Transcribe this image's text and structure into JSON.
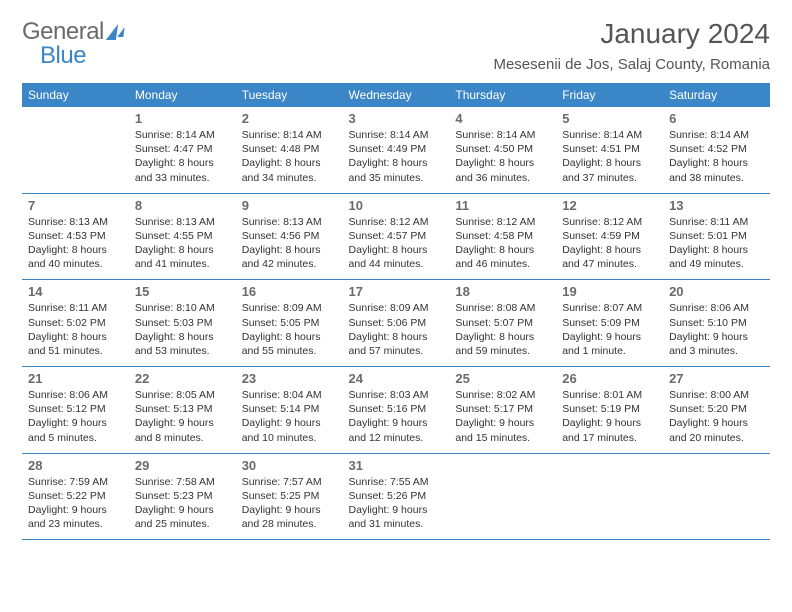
{
  "brand": {
    "word1": "General",
    "word2": "Blue"
  },
  "title": "January 2024",
  "location": "Mesesenii de Jos, Salaj County, Romania",
  "colors": {
    "header_bg": "#3b86c6",
    "header_fg": "#ffffff",
    "rule": "#3b86c6",
    "text": "#333333",
    "muted": "#6a6a6a"
  },
  "weekdays": [
    "Sunday",
    "Monday",
    "Tuesday",
    "Wednesday",
    "Thursday",
    "Friday",
    "Saturday"
  ],
  "weeks": [
    [
      null,
      {
        "n": "1",
        "sr": "Sunrise: 8:14 AM",
        "ss": "Sunset: 4:47 PM",
        "dl1": "Daylight: 8 hours",
        "dl2": "and 33 minutes."
      },
      {
        "n": "2",
        "sr": "Sunrise: 8:14 AM",
        "ss": "Sunset: 4:48 PM",
        "dl1": "Daylight: 8 hours",
        "dl2": "and 34 minutes."
      },
      {
        "n": "3",
        "sr": "Sunrise: 8:14 AM",
        "ss": "Sunset: 4:49 PM",
        "dl1": "Daylight: 8 hours",
        "dl2": "and 35 minutes."
      },
      {
        "n": "4",
        "sr": "Sunrise: 8:14 AM",
        "ss": "Sunset: 4:50 PM",
        "dl1": "Daylight: 8 hours",
        "dl2": "and 36 minutes."
      },
      {
        "n": "5",
        "sr": "Sunrise: 8:14 AM",
        "ss": "Sunset: 4:51 PM",
        "dl1": "Daylight: 8 hours",
        "dl2": "and 37 minutes."
      },
      {
        "n": "6",
        "sr": "Sunrise: 8:14 AM",
        "ss": "Sunset: 4:52 PM",
        "dl1": "Daylight: 8 hours",
        "dl2": "and 38 minutes."
      }
    ],
    [
      {
        "n": "7",
        "sr": "Sunrise: 8:13 AM",
        "ss": "Sunset: 4:53 PM",
        "dl1": "Daylight: 8 hours",
        "dl2": "and 40 minutes."
      },
      {
        "n": "8",
        "sr": "Sunrise: 8:13 AM",
        "ss": "Sunset: 4:55 PM",
        "dl1": "Daylight: 8 hours",
        "dl2": "and 41 minutes."
      },
      {
        "n": "9",
        "sr": "Sunrise: 8:13 AM",
        "ss": "Sunset: 4:56 PM",
        "dl1": "Daylight: 8 hours",
        "dl2": "and 42 minutes."
      },
      {
        "n": "10",
        "sr": "Sunrise: 8:12 AM",
        "ss": "Sunset: 4:57 PM",
        "dl1": "Daylight: 8 hours",
        "dl2": "and 44 minutes."
      },
      {
        "n": "11",
        "sr": "Sunrise: 8:12 AM",
        "ss": "Sunset: 4:58 PM",
        "dl1": "Daylight: 8 hours",
        "dl2": "and 46 minutes."
      },
      {
        "n": "12",
        "sr": "Sunrise: 8:12 AM",
        "ss": "Sunset: 4:59 PM",
        "dl1": "Daylight: 8 hours",
        "dl2": "and 47 minutes."
      },
      {
        "n": "13",
        "sr": "Sunrise: 8:11 AM",
        "ss": "Sunset: 5:01 PM",
        "dl1": "Daylight: 8 hours",
        "dl2": "and 49 minutes."
      }
    ],
    [
      {
        "n": "14",
        "sr": "Sunrise: 8:11 AM",
        "ss": "Sunset: 5:02 PM",
        "dl1": "Daylight: 8 hours",
        "dl2": "and 51 minutes."
      },
      {
        "n": "15",
        "sr": "Sunrise: 8:10 AM",
        "ss": "Sunset: 5:03 PM",
        "dl1": "Daylight: 8 hours",
        "dl2": "and 53 minutes."
      },
      {
        "n": "16",
        "sr": "Sunrise: 8:09 AM",
        "ss": "Sunset: 5:05 PM",
        "dl1": "Daylight: 8 hours",
        "dl2": "and 55 minutes."
      },
      {
        "n": "17",
        "sr": "Sunrise: 8:09 AM",
        "ss": "Sunset: 5:06 PM",
        "dl1": "Daylight: 8 hours",
        "dl2": "and 57 minutes."
      },
      {
        "n": "18",
        "sr": "Sunrise: 8:08 AM",
        "ss": "Sunset: 5:07 PM",
        "dl1": "Daylight: 8 hours",
        "dl2": "and 59 minutes."
      },
      {
        "n": "19",
        "sr": "Sunrise: 8:07 AM",
        "ss": "Sunset: 5:09 PM",
        "dl1": "Daylight: 9 hours",
        "dl2": "and 1 minute."
      },
      {
        "n": "20",
        "sr": "Sunrise: 8:06 AM",
        "ss": "Sunset: 5:10 PM",
        "dl1": "Daylight: 9 hours",
        "dl2": "and 3 minutes."
      }
    ],
    [
      {
        "n": "21",
        "sr": "Sunrise: 8:06 AM",
        "ss": "Sunset: 5:12 PM",
        "dl1": "Daylight: 9 hours",
        "dl2": "and 5 minutes."
      },
      {
        "n": "22",
        "sr": "Sunrise: 8:05 AM",
        "ss": "Sunset: 5:13 PM",
        "dl1": "Daylight: 9 hours",
        "dl2": "and 8 minutes."
      },
      {
        "n": "23",
        "sr": "Sunrise: 8:04 AM",
        "ss": "Sunset: 5:14 PM",
        "dl1": "Daylight: 9 hours",
        "dl2": "and 10 minutes."
      },
      {
        "n": "24",
        "sr": "Sunrise: 8:03 AM",
        "ss": "Sunset: 5:16 PM",
        "dl1": "Daylight: 9 hours",
        "dl2": "and 12 minutes."
      },
      {
        "n": "25",
        "sr": "Sunrise: 8:02 AM",
        "ss": "Sunset: 5:17 PM",
        "dl1": "Daylight: 9 hours",
        "dl2": "and 15 minutes."
      },
      {
        "n": "26",
        "sr": "Sunrise: 8:01 AM",
        "ss": "Sunset: 5:19 PM",
        "dl1": "Daylight: 9 hours",
        "dl2": "and 17 minutes."
      },
      {
        "n": "27",
        "sr": "Sunrise: 8:00 AM",
        "ss": "Sunset: 5:20 PM",
        "dl1": "Daylight: 9 hours",
        "dl2": "and 20 minutes."
      }
    ],
    [
      {
        "n": "28",
        "sr": "Sunrise: 7:59 AM",
        "ss": "Sunset: 5:22 PM",
        "dl1": "Daylight: 9 hours",
        "dl2": "and 23 minutes."
      },
      {
        "n": "29",
        "sr": "Sunrise: 7:58 AM",
        "ss": "Sunset: 5:23 PM",
        "dl1": "Daylight: 9 hours",
        "dl2": "and 25 minutes."
      },
      {
        "n": "30",
        "sr": "Sunrise: 7:57 AM",
        "ss": "Sunset: 5:25 PM",
        "dl1": "Daylight: 9 hours",
        "dl2": "and 28 minutes."
      },
      {
        "n": "31",
        "sr": "Sunrise: 7:55 AM",
        "ss": "Sunset: 5:26 PM",
        "dl1": "Daylight: 9 hours",
        "dl2": "and 31 minutes."
      },
      null,
      null,
      null
    ]
  ]
}
